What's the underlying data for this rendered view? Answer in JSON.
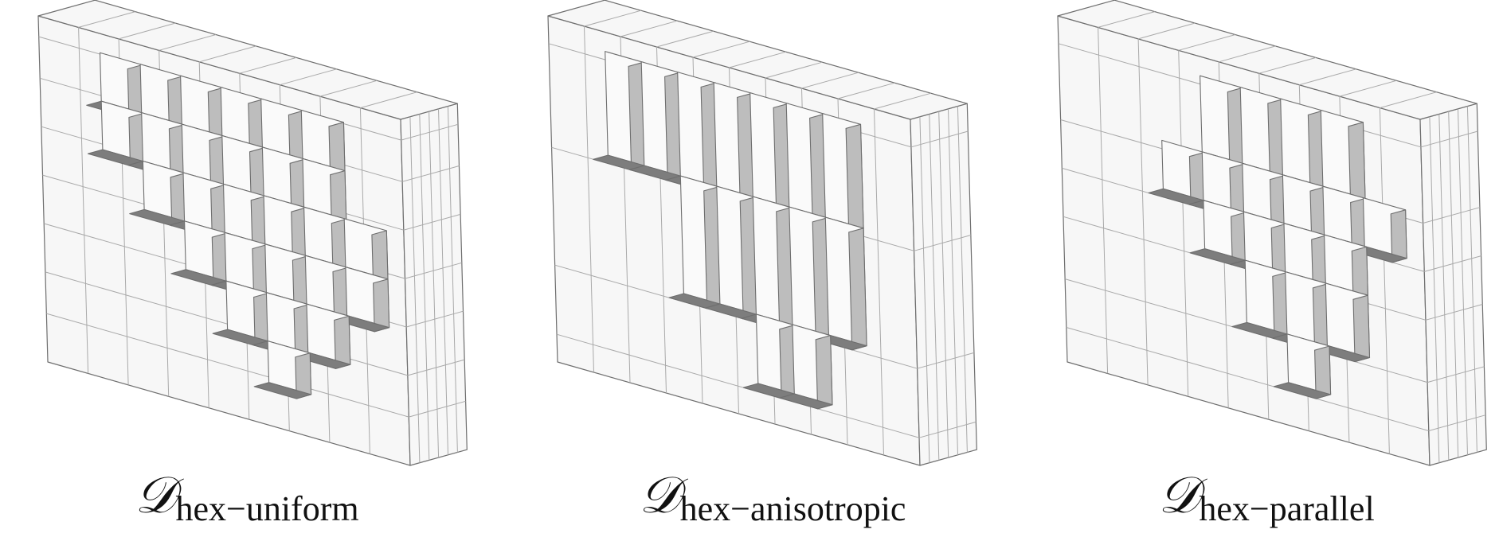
{
  "panels": [
    {
      "id": "uniform",
      "symbol": "𝒟",
      "subscript": "hex−uniform"
    },
    {
      "id": "anisotropic",
      "symbol": "𝒟",
      "subscript": "hex−anisotropic"
    },
    {
      "id": "parallel",
      "symbol": "𝒟",
      "subscript": "hex−parallel"
    }
  ],
  "colors": {
    "front": "#f7f7f7",
    "side": "#bdbdbd",
    "top": "#7d7d7d",
    "edge": "#6e6e6e",
    "grid": "#a9a9a9"
  }
}
